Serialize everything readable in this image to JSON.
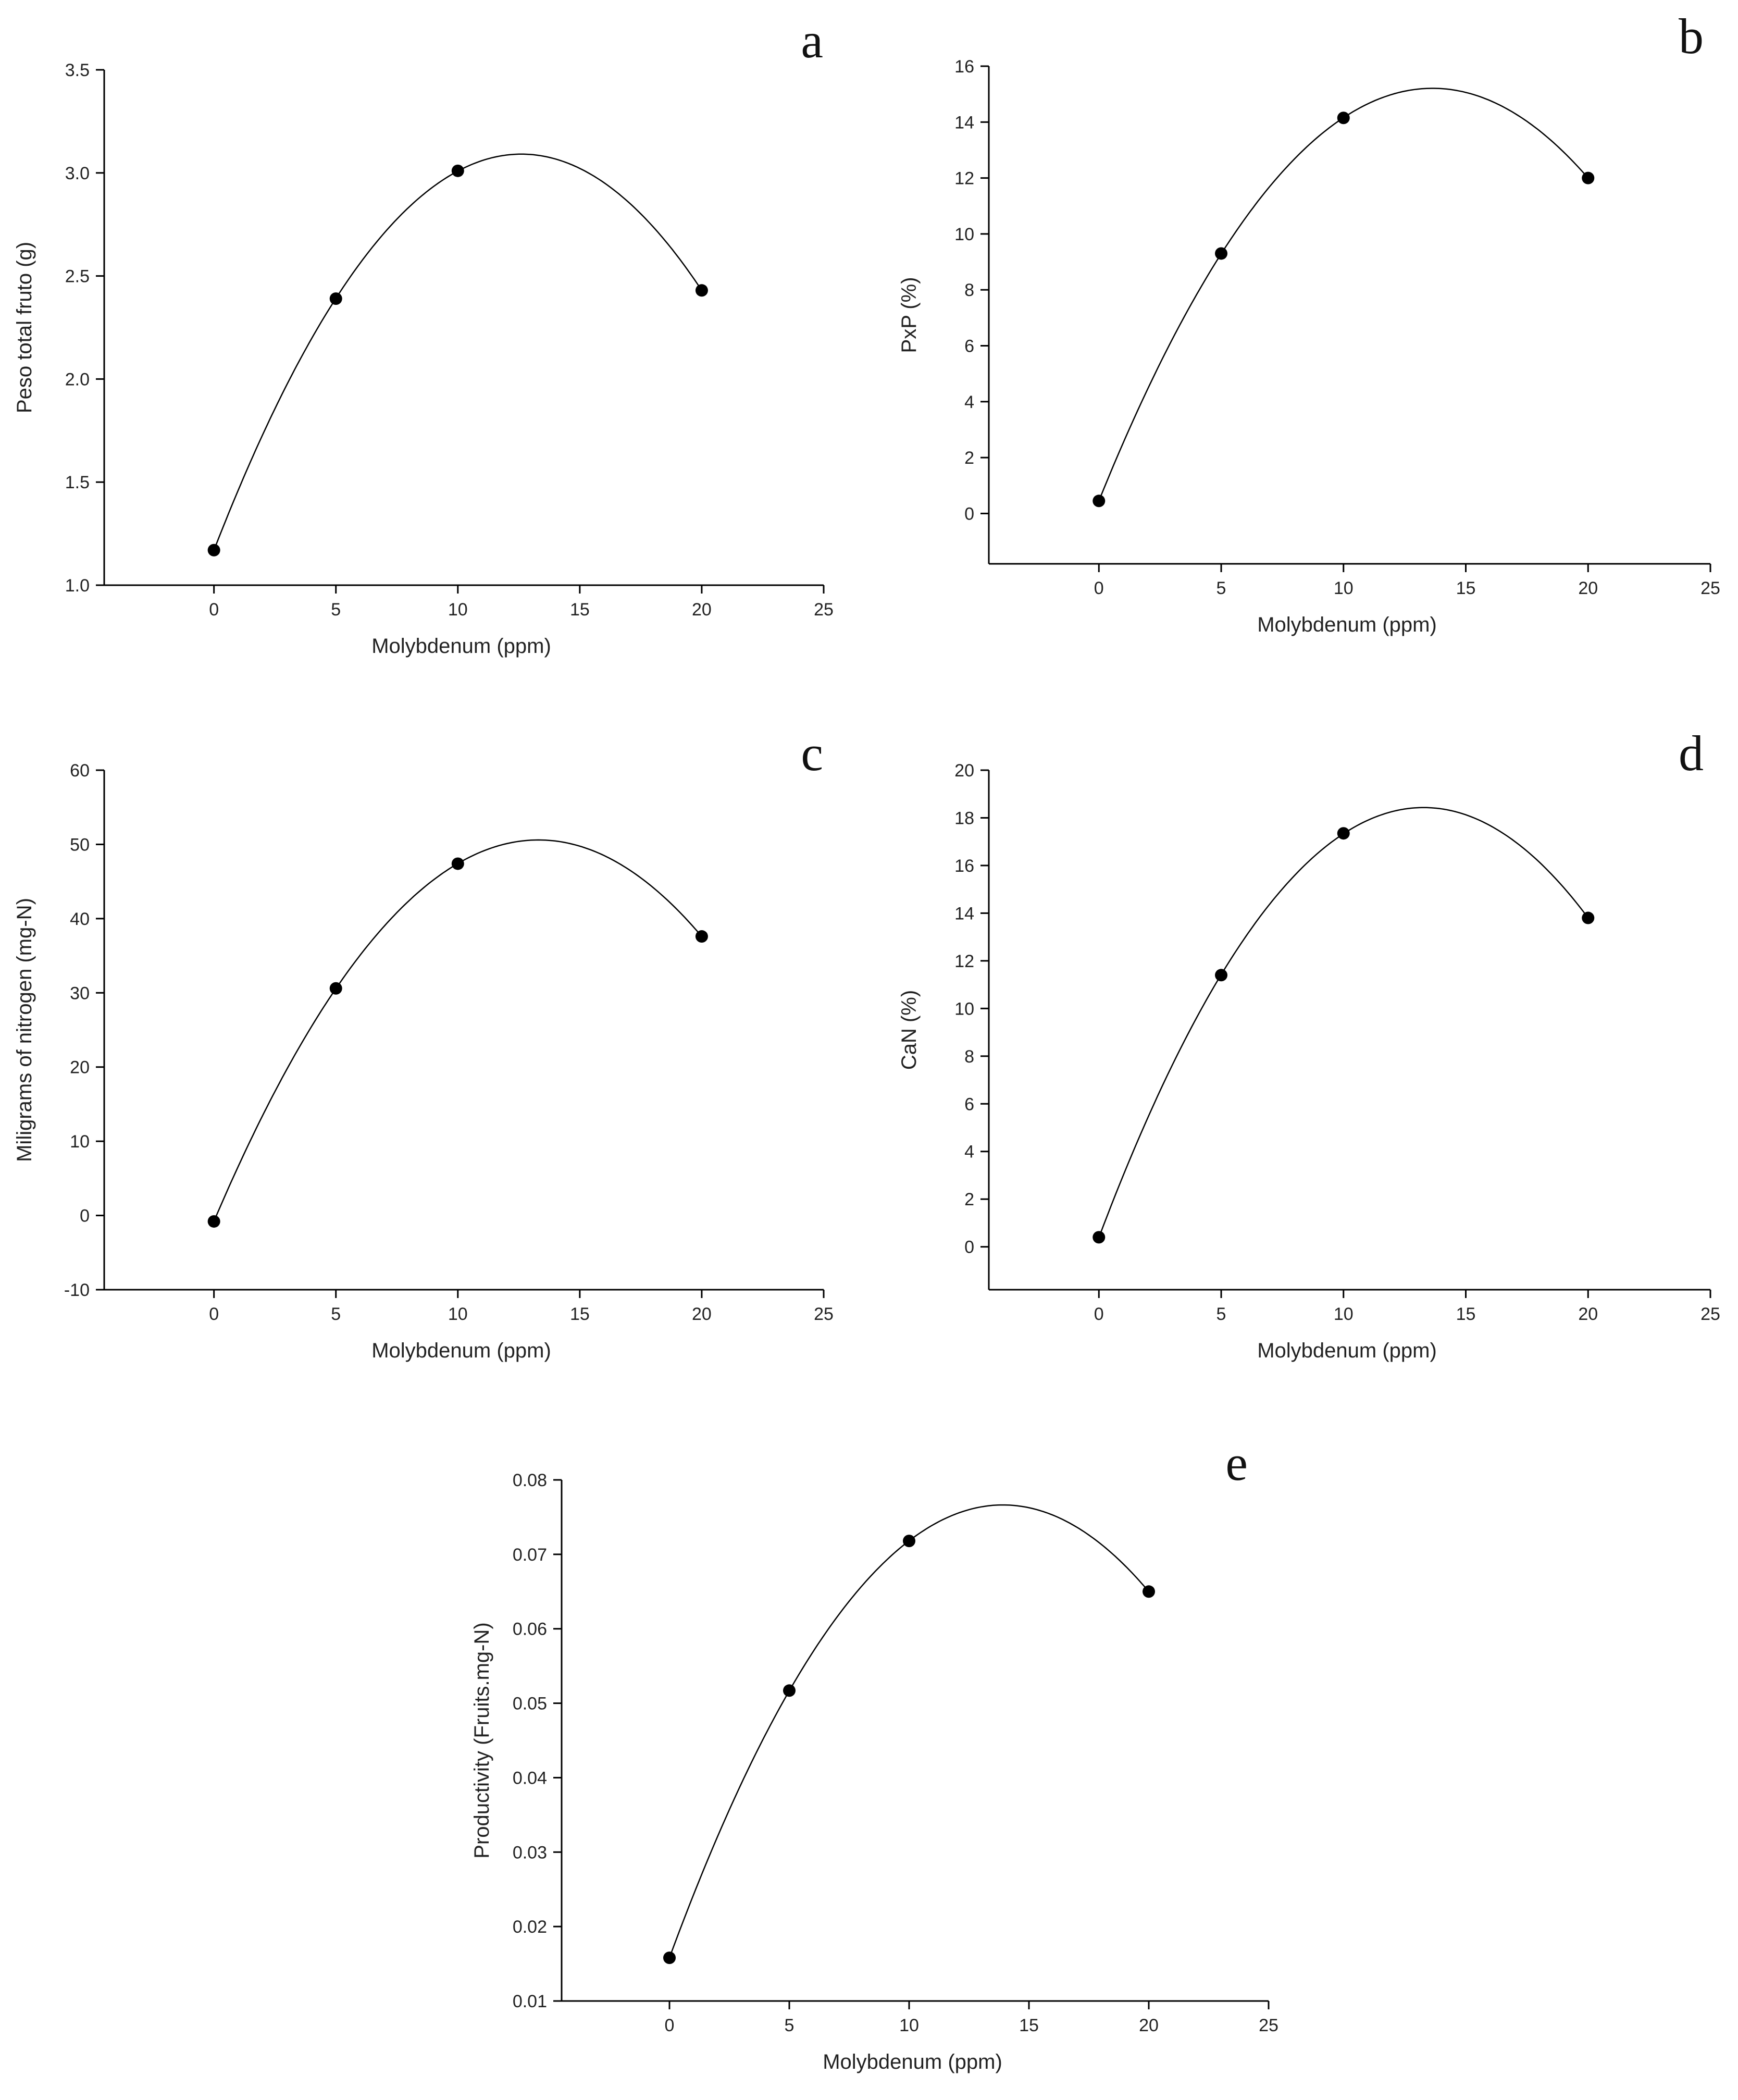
{
  "chart_data": [
    {
      "panel": "a",
      "type": "scatter",
      "xlabel": "Molybdenum (ppm)",
      "ylabel": "Peso total fruto (g)",
      "xlim": [
        -4.5,
        25
      ],
      "ylim": [
        1.0,
        3.5
      ],
      "xticks": [
        0,
        5,
        10,
        15,
        20,
        25
      ],
      "yticks": [
        1.0,
        1.5,
        2.0,
        2.5,
        3.0,
        3.5
      ],
      "ytick_decimals": 1,
      "points": {
        "x": [
          0,
          5,
          10,
          20
        ],
        "y": [
          1.17,
          2.39,
          3.01,
          2.43
        ]
      },
      "fit": "quadratic",
      "grid": false
    },
    {
      "panel": "b",
      "type": "scatter",
      "xlabel": "Molybdenum (ppm)",
      "ylabel": "PxP (%)",
      "xlim": [
        -4.5,
        25
      ],
      "ylim": [
        -1.8,
        16
      ],
      "xticks": [
        0,
        5,
        10,
        15,
        20,
        25
      ],
      "yticks": [
        0,
        2,
        4,
        6,
        8,
        10,
        12,
        14,
        16
      ],
      "ytick_decimals": 0,
      "points": {
        "x": [
          0,
          5,
          10,
          20
        ],
        "y": [
          0.45,
          9.3,
          14.15,
          12.0
        ]
      },
      "fit": "quadratic",
      "grid": false
    },
    {
      "panel": "c",
      "type": "scatter",
      "xlabel": "Molybdenum (ppm)",
      "ylabel": "Miligrams of nitrogen (mg-N)",
      "xlim": [
        -4.5,
        25
      ],
      "ylim": [
        -10,
        60
      ],
      "xticks": [
        0,
        5,
        10,
        15,
        20,
        25
      ],
      "yticks": [
        -10,
        0,
        10,
        20,
        30,
        40,
        50,
        60
      ],
      "ytick_decimals": 0,
      "points": {
        "x": [
          0,
          5,
          10,
          20
        ],
        "y": [
          -0.8,
          30.6,
          47.4,
          37.6
        ]
      },
      "fit": "quadratic",
      "grid": false
    },
    {
      "panel": "d",
      "type": "scatter",
      "xlabel": "Molybdenum (ppm)",
      "ylabel": "CaN (%)",
      "xlim": [
        -4.5,
        25
      ],
      "ylim": [
        -1.8,
        20
      ],
      "xticks": [
        0,
        5,
        10,
        15,
        20,
        25
      ],
      "yticks": [
        0,
        2,
        4,
        6,
        8,
        10,
        12,
        14,
        16,
        18,
        20
      ],
      "ytick_decimals": 0,
      "points": {
        "x": [
          0,
          5,
          10,
          20
        ],
        "y": [
          0.4,
          11.4,
          17.35,
          13.8
        ]
      },
      "fit": "quadratic",
      "grid": false
    },
    {
      "panel": "e",
      "type": "scatter",
      "xlabel": "Molybdenum (ppm)",
      "ylabel": "Productivity (Fruits.mg-N)",
      "xlim": [
        -4.5,
        25
      ],
      "ylim": [
        0.01,
        0.08
      ],
      "xticks": [
        0,
        5,
        10,
        15,
        20,
        25
      ],
      "yticks": [
        0.01,
        0.02,
        0.03,
        0.04,
        0.05,
        0.06,
        0.07,
        0.08
      ],
      "ytick_decimals": 2,
      "points": {
        "x": [
          0,
          5,
          10,
          20
        ],
        "y": [
          0.0158,
          0.0517,
          0.0718,
          0.065
        ]
      },
      "fit": "quadratic",
      "grid": false
    }
  ]
}
